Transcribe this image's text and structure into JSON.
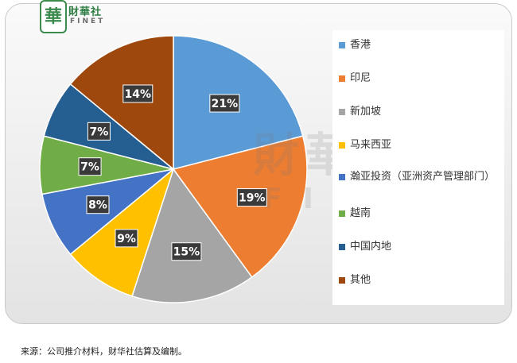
{
  "logo": {
    "badge": "華",
    "name": "財華社",
    "sub": "FINET"
  },
  "watermark": {
    "name": "財華社",
    "sub": "FINET"
  },
  "chart_data": {
    "type": "pie",
    "categories": [
      "香港",
      "印尼",
      "新加坡",
      "马来西亚",
      "瀚亚投资（亚洲资产管理部门）",
      "越南",
      "中国内地",
      "其他"
    ],
    "values": [
      21,
      19,
      15,
      9,
      8,
      7,
      7,
      14
    ],
    "labels": [
      "21%",
      "19%",
      "15%",
      "9%",
      "8%",
      "7%",
      "7%",
      "14%"
    ],
    "colors": [
      "#5b9bd5",
      "#ed7d31",
      "#a5a5a5",
      "#ffc000",
      "#4472c4",
      "#70ad47",
      "#255e91",
      "#9e480e"
    ],
    "legend_position": "right"
  },
  "source": "来源：公司推介材料，财华社估算及编制。"
}
